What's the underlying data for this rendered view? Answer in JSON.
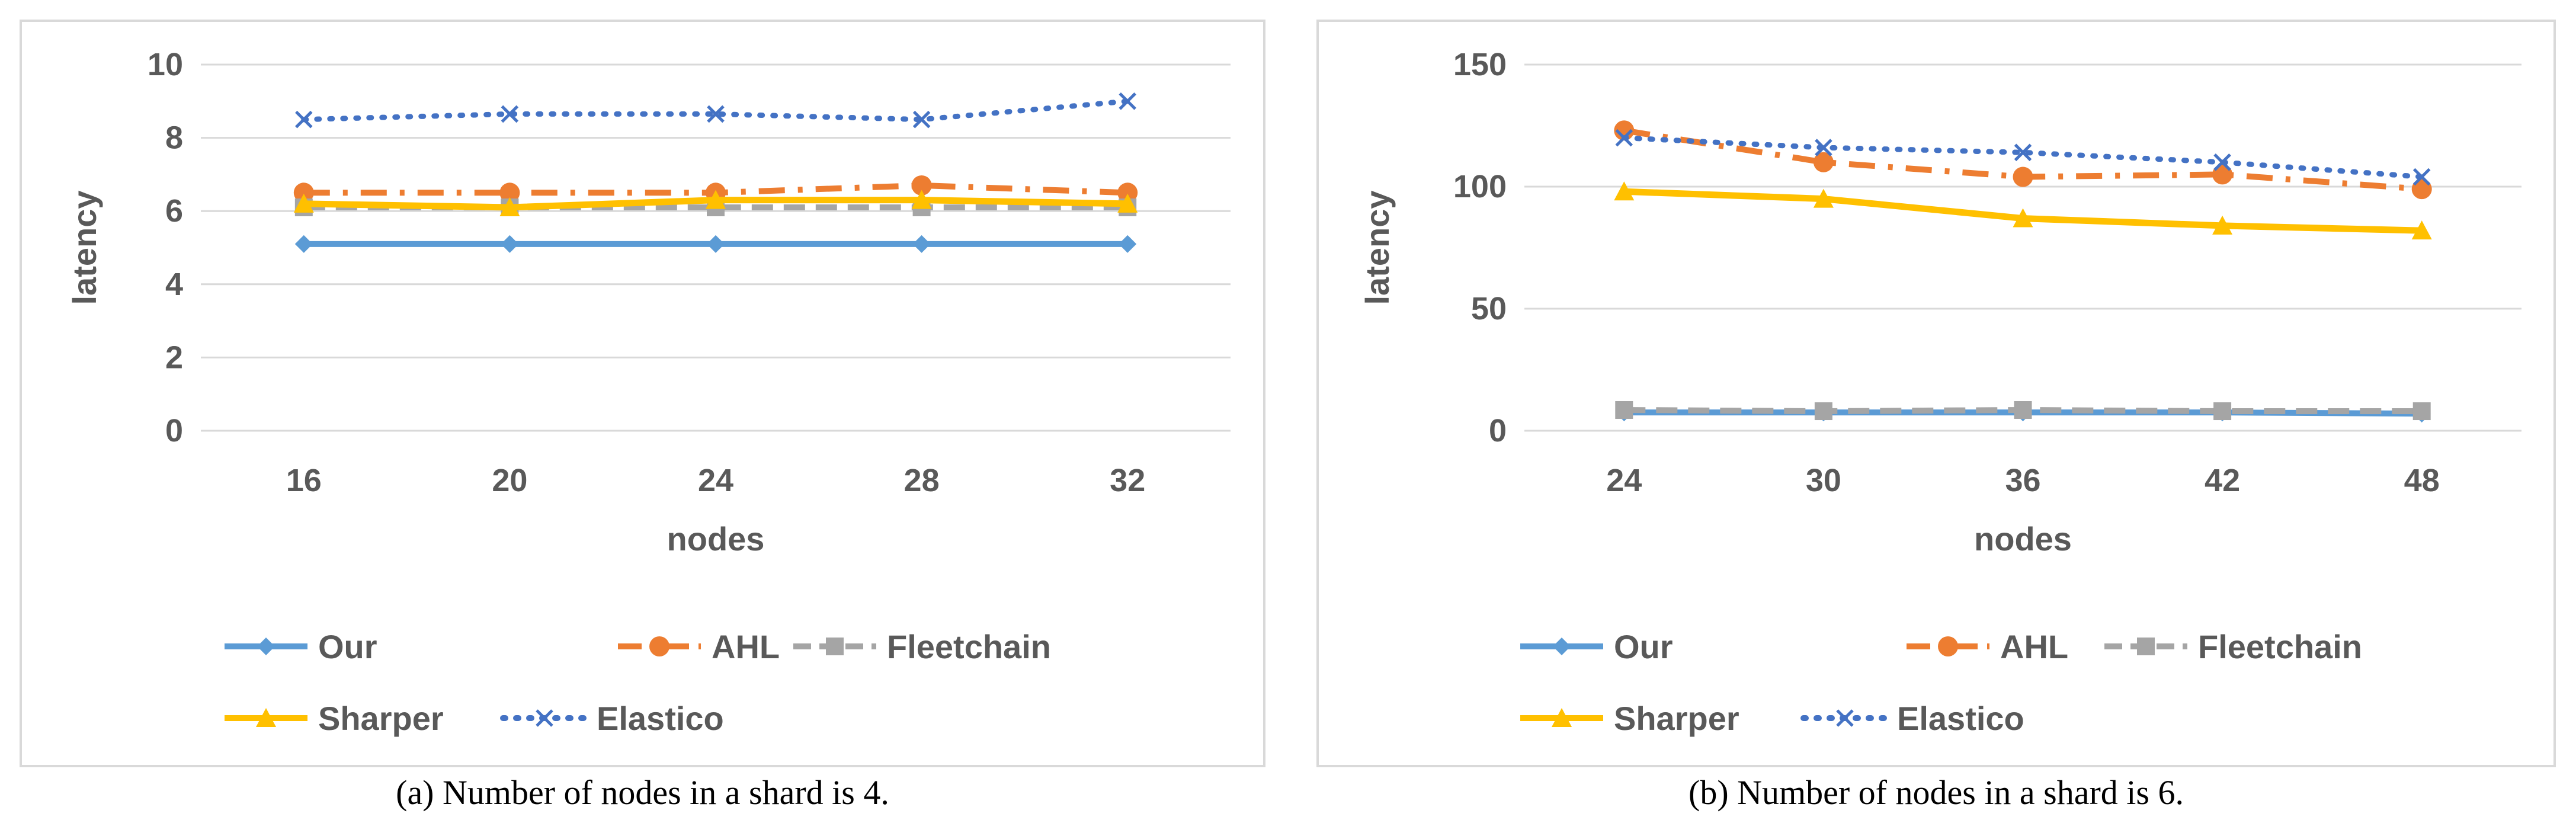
{
  "colors": {
    "Our": "#5b9bd5",
    "AHL": "#ed7d31",
    "Fleetchain": "#a5a5a5",
    "Sharper": "#ffc000",
    "Elastico": "#4472c4",
    "grid": "#d9d9d9",
    "text": "#595959"
  },
  "chart_data": [
    {
      "type": "line",
      "caption": "(a)  Number of nodes in a shard is 4.",
      "xlabel": "nodes",
      "ylabel": "latency",
      "categories": [
        "16",
        "20",
        "24",
        "28",
        "32"
      ],
      "ylim": [
        0,
        10
      ],
      "yticks": [
        "0",
        "2",
        "4",
        "6",
        "8",
        "10"
      ],
      "series": [
        {
          "name": "Our",
          "values": [
            5.1,
            5.1,
            5.1,
            5.1,
            5.1
          ],
          "marker": "diamond",
          "dash": "solid"
        },
        {
          "name": "AHL",
          "values": [
            6.5,
            6.5,
            6.5,
            6.7,
            6.5
          ],
          "marker": "circle",
          "dash": "longdashdot"
        },
        {
          "name": "Fleetchain",
          "values": [
            6.1,
            6.1,
            6.1,
            6.1,
            6.1
          ],
          "marker": "square",
          "dash": "dash"
        },
        {
          "name": "Sharper",
          "values": [
            6.2,
            6.1,
            6.3,
            6.3,
            6.2
          ],
          "marker": "triangle",
          "dash": "solid"
        },
        {
          "name": "Elastico",
          "values": [
            8.5,
            8.65,
            8.65,
            8.5,
            9.0
          ],
          "marker": "x",
          "dash": "dot"
        }
      ]
    },
    {
      "type": "line",
      "caption": "(b)  Number of nodes in a shard is 6.",
      "xlabel": "nodes",
      "ylabel": "latency",
      "categories": [
        "24",
        "30",
        "36",
        "42",
        "48"
      ],
      "ylim": [
        0,
        150
      ],
      "yticks": [
        "0",
        "50",
        "100",
        "150"
      ],
      "series": [
        {
          "name": "Our",
          "values": [
            7.5,
            7.5,
            7.5,
            7.5,
            7
          ],
          "marker": "diamond",
          "dash": "solid"
        },
        {
          "name": "AHL",
          "values": [
            123,
            110,
            104,
            105,
            99
          ],
          "marker": "circle",
          "dash": "longdashdot"
        },
        {
          "name": "Fleetchain",
          "values": [
            8.5,
            8,
            8.5,
            8,
            8
          ],
          "marker": "square",
          "dash": "dash"
        },
        {
          "name": "Sharper",
          "values": [
            98,
            95,
            87,
            84,
            82
          ],
          "marker": "triangle",
          "dash": "solid"
        },
        {
          "name": "Elastico",
          "values": [
            120,
            116,
            114,
            110,
            104
          ],
          "marker": "x",
          "dash": "dot"
        }
      ]
    }
  ]
}
